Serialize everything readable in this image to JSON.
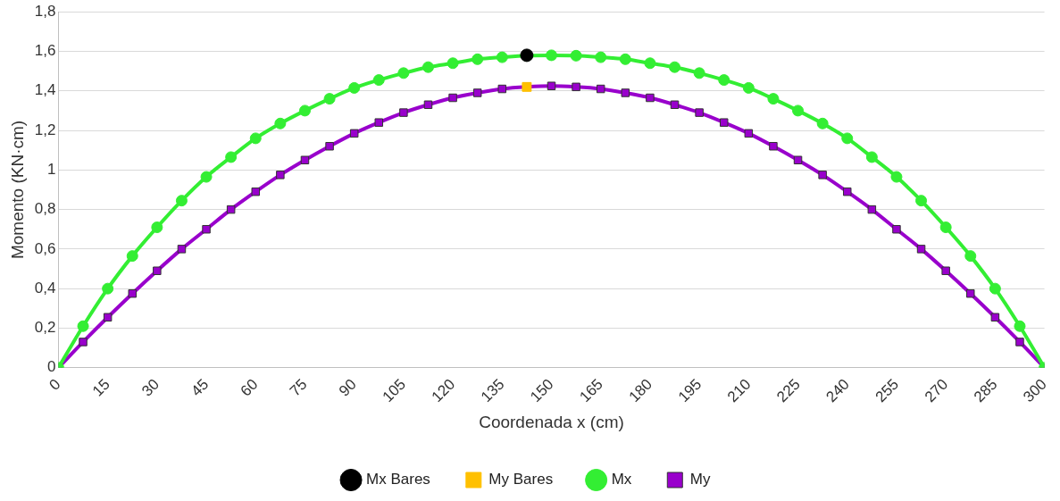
{
  "chart_data": {
    "type": "line",
    "xlabel": "Coordenada x (cm)",
    "ylabel": "Momento (KN·cm)",
    "xlim": [
      0,
      300
    ],
    "xticks": [
      0,
      15,
      30,
      45,
      60,
      75,
      90,
      105,
      120,
      135,
      150,
      165,
      180,
      195,
      210,
      225,
      240,
      255,
      270,
      285,
      300
    ],
    "ylim": [
      0,
      1.8
    ],
    "yticks": [
      0,
      {
        "value": 0.2,
        "label": "0,2"
      },
      {
        "value": 0.4,
        "label": "0,4"
      },
      {
        "value": 0.6,
        "label": "0,6"
      },
      {
        "value": 0.8,
        "label": "0,8"
      },
      1,
      {
        "value": 1.2,
        "label": "1,2"
      },
      {
        "value": 1.4,
        "label": "1,4"
      },
      {
        "value": 1.6,
        "label": "1,6"
      },
      {
        "value": 1.8,
        "label": "1,8"
      }
    ],
    "grid": "y",
    "legend": "bottom",
    "series": [
      {
        "name": "Mx",
        "type": "line",
        "marker": "circle",
        "color": "#33ee33",
        "x": [
          0,
          7.5,
          15,
          22.5,
          30,
          37.5,
          45,
          52.5,
          60,
          67.5,
          75,
          82.5,
          90,
          97.5,
          105,
          112.5,
          120,
          127.5,
          135,
          142.5,
          150,
          157.5,
          165,
          172.5,
          180,
          187.5,
          195,
          202.5,
          210,
          217.5,
          225,
          232.5,
          240,
          247.5,
          255,
          262.5,
          270,
          277.5,
          285,
          292.5,
          300
        ],
        "values": [
          0,
          0.21,
          0.4,
          0.565,
          0.71,
          0.845,
          0.965,
          1.065,
          1.16,
          1.235,
          1.3,
          1.36,
          1.415,
          1.455,
          1.49,
          1.52,
          1.54,
          1.56,
          1.57,
          1.578,
          1.58,
          1.578,
          1.57,
          1.56,
          1.54,
          1.52,
          1.49,
          1.455,
          1.415,
          1.36,
          1.3,
          1.235,
          1.16,
          1.065,
          0.965,
          0.845,
          0.71,
          0.565,
          0.4,
          0.21,
          0
        ]
      },
      {
        "name": "My",
        "type": "line",
        "marker": "square",
        "color": "#9900cc",
        "x": [
          0,
          7.5,
          15,
          22.5,
          30,
          37.5,
          45,
          52.5,
          60,
          67.5,
          75,
          82.5,
          90,
          97.5,
          105,
          112.5,
          120,
          127.5,
          135,
          142.5,
          150,
          157.5,
          165,
          172.5,
          180,
          187.5,
          195,
          202.5,
          210,
          217.5,
          225,
          232.5,
          240,
          247.5,
          255,
          262.5,
          270,
          277.5,
          285,
          292.5,
          300
        ],
        "values": [
          0,
          0.13,
          0.255,
          0.375,
          0.49,
          0.6,
          0.7,
          0.8,
          0.89,
          0.975,
          1.05,
          1.12,
          1.185,
          1.24,
          1.29,
          1.33,
          1.365,
          1.39,
          1.41,
          1.42,
          1.425,
          1.42,
          1.41,
          1.39,
          1.365,
          1.33,
          1.29,
          1.24,
          1.185,
          1.12,
          1.05,
          0.975,
          0.89,
          0.8,
          0.7,
          0.6,
          0.49,
          0.375,
          0.255,
          0.13,
          0
        ]
      },
      {
        "name": "Mx Bares",
        "type": "scatter",
        "marker": "circle",
        "color": "#000000",
        "x": [
          142.5
        ],
        "values": [
          1.58
        ]
      },
      {
        "name": "My Bares",
        "type": "scatter",
        "marker": "square",
        "color": "#ffc000",
        "x": [
          142.5
        ],
        "values": [
          1.42
        ]
      }
    ]
  }
}
